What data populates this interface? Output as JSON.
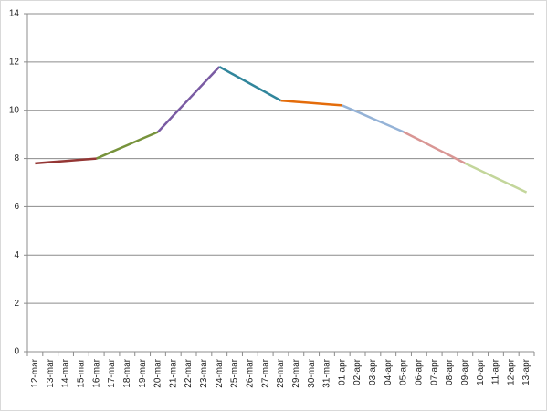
{
  "chart_data": {
    "type": "line",
    "categories": [
      "12-mar",
      "13-mar",
      "14-mar",
      "15-mar",
      "16-mar",
      "17-mar",
      "18-mar",
      "19-mar",
      "20-mar",
      "21-mar",
      "22-mar",
      "23-mar",
      "24-mar",
      "25-mar",
      "26-mar",
      "27-mar",
      "28-mar",
      "29-mar",
      "30-mar",
      "31-mar",
      "01-apr",
      "02-apr",
      "03-apr",
      "04-apr",
      "05-apr",
      "06-apr",
      "07-apr",
      "08-apr",
      "09-apr",
      "10-apr",
      "11-apr",
      "12-apr",
      "13-apr"
    ],
    "series": [
      {
        "color": "#943634",
        "values": [
          7.8,
          7.85,
          7.9,
          7.95,
          8.0,
          null,
          null,
          null,
          null,
          null,
          null,
          null,
          null,
          null,
          null,
          null,
          null,
          null,
          null,
          null,
          null,
          null,
          null,
          null,
          null,
          null,
          null,
          null,
          null,
          null,
          null,
          null,
          null
        ]
      },
      {
        "color": "#77933c",
        "values": [
          null,
          null,
          null,
          null,
          8.0,
          8.28,
          8.55,
          8.83,
          9.1,
          null,
          null,
          null,
          null,
          null,
          null,
          null,
          null,
          null,
          null,
          null,
          null,
          null,
          null,
          null,
          null,
          null,
          null,
          null,
          null,
          null,
          null,
          null,
          null
        ]
      },
      {
        "color": "#7a5ba3",
        "values": [
          null,
          null,
          null,
          null,
          null,
          null,
          null,
          null,
          9.1,
          9.78,
          10.45,
          11.13,
          11.8,
          null,
          null,
          null,
          null,
          null,
          null,
          null,
          null,
          null,
          null,
          null,
          null,
          null,
          null,
          null,
          null,
          null,
          null,
          null,
          null
        ]
      },
      {
        "color": "#31869c",
        "values": [
          null,
          null,
          null,
          null,
          null,
          null,
          null,
          null,
          null,
          null,
          null,
          null,
          11.8,
          11.45,
          11.1,
          10.75,
          10.4,
          null,
          null,
          null,
          null,
          null,
          null,
          null,
          null,
          null,
          null,
          null,
          null,
          null,
          null,
          null,
          null
        ]
      },
      {
        "color": "#e46c0a",
        "values": [
          null,
          null,
          null,
          null,
          null,
          null,
          null,
          null,
          null,
          null,
          null,
          null,
          null,
          null,
          null,
          null,
          10.4,
          10.35,
          10.3,
          10.25,
          10.2,
          null,
          null,
          null,
          null,
          null,
          null,
          null,
          null,
          null,
          null,
          null,
          null
        ]
      },
      {
        "color": "#95b3d7",
        "values": [
          null,
          null,
          null,
          null,
          null,
          null,
          null,
          null,
          null,
          null,
          null,
          null,
          null,
          null,
          null,
          null,
          null,
          null,
          null,
          null,
          10.2,
          9.93,
          9.65,
          9.38,
          9.1,
          null,
          null,
          null,
          null,
          null,
          null,
          null,
          null
        ]
      },
      {
        "color": "#d99694",
        "values": [
          null,
          null,
          null,
          null,
          null,
          null,
          null,
          null,
          null,
          null,
          null,
          null,
          null,
          null,
          null,
          null,
          null,
          null,
          null,
          null,
          null,
          null,
          null,
          null,
          9.1,
          8.78,
          8.45,
          8.13,
          7.8,
          null,
          null,
          null,
          null
        ]
      },
      {
        "color": "#c3d69b",
        "values": [
          null,
          null,
          null,
          null,
          null,
          null,
          null,
          null,
          null,
          null,
          null,
          null,
          null,
          null,
          null,
          null,
          null,
          null,
          null,
          null,
          null,
          null,
          null,
          null,
          null,
          null,
          null,
          null,
          7.8,
          7.5,
          7.2,
          6.9,
          6.6
        ]
      }
    ],
    "ylim": [
      0,
      14
    ],
    "yticks": [
      0,
      2,
      4,
      6,
      8,
      10,
      12,
      14
    ],
    "grid": true
  }
}
